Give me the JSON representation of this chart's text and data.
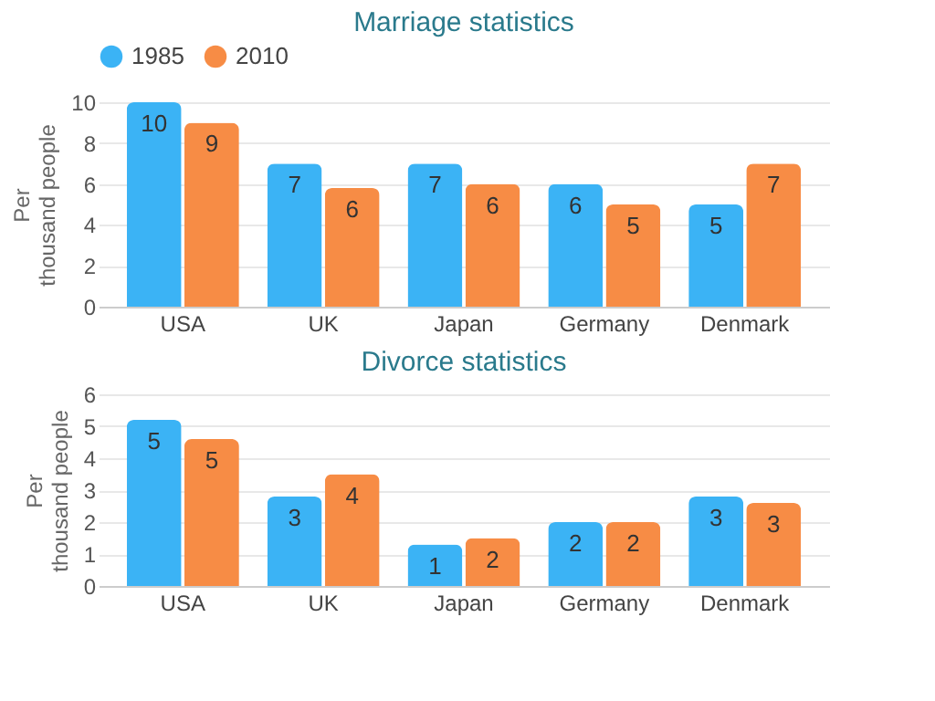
{
  "chart_data": [
    {
      "type": "bar",
      "title": "Marriage statistics",
      "ylabel": "Per thousand people",
      "categories": [
        "USA",
        "UK",
        "Japan",
        "Germany",
        "Denmark"
      ],
      "ylim": [
        0,
        10
      ],
      "yticks": [
        0,
        2,
        4,
        6,
        8,
        10
      ],
      "grid": "y",
      "legend": "top",
      "series": [
        {
          "name": "1985",
          "color": "#3bb3f5",
          "values": [
            10,
            7,
            7,
            6,
            5
          ],
          "value_labels": [
            "10",
            "7",
            "7",
            "6",
            "5"
          ]
        },
        {
          "name": "2010",
          "color": "#f78c45",
          "values": [
            9,
            5.8,
            6,
            5,
            7
          ],
          "value_labels": [
            "9",
            "6",
            "6",
            "5",
            "7"
          ]
        }
      ]
    },
    {
      "type": "bar",
      "title": "Divorce statistics",
      "ylabel": "Per thousand people",
      "categories": [
        "USA",
        "UK",
        "Japan",
        "Germany",
        "Denmark"
      ],
      "ylim": [
        0,
        6
      ],
      "yticks": [
        0,
        1,
        2,
        3,
        4,
        5,
        6
      ],
      "grid": "y",
      "series": [
        {
          "name": "1985",
          "color": "#3bb3f5",
          "values": [
            5.2,
            2.8,
            1.3,
            2,
            2.8
          ],
          "value_labels": [
            "5",
            "3",
            "1",
            "2",
            "3"
          ]
        },
        {
          "name": "2010",
          "color": "#f78c45",
          "values": [
            4.6,
            3.5,
            1.5,
            2,
            2.6
          ],
          "value_labels": [
            "5",
            "4",
            "2",
            "2",
            "3"
          ]
        }
      ]
    }
  ]
}
